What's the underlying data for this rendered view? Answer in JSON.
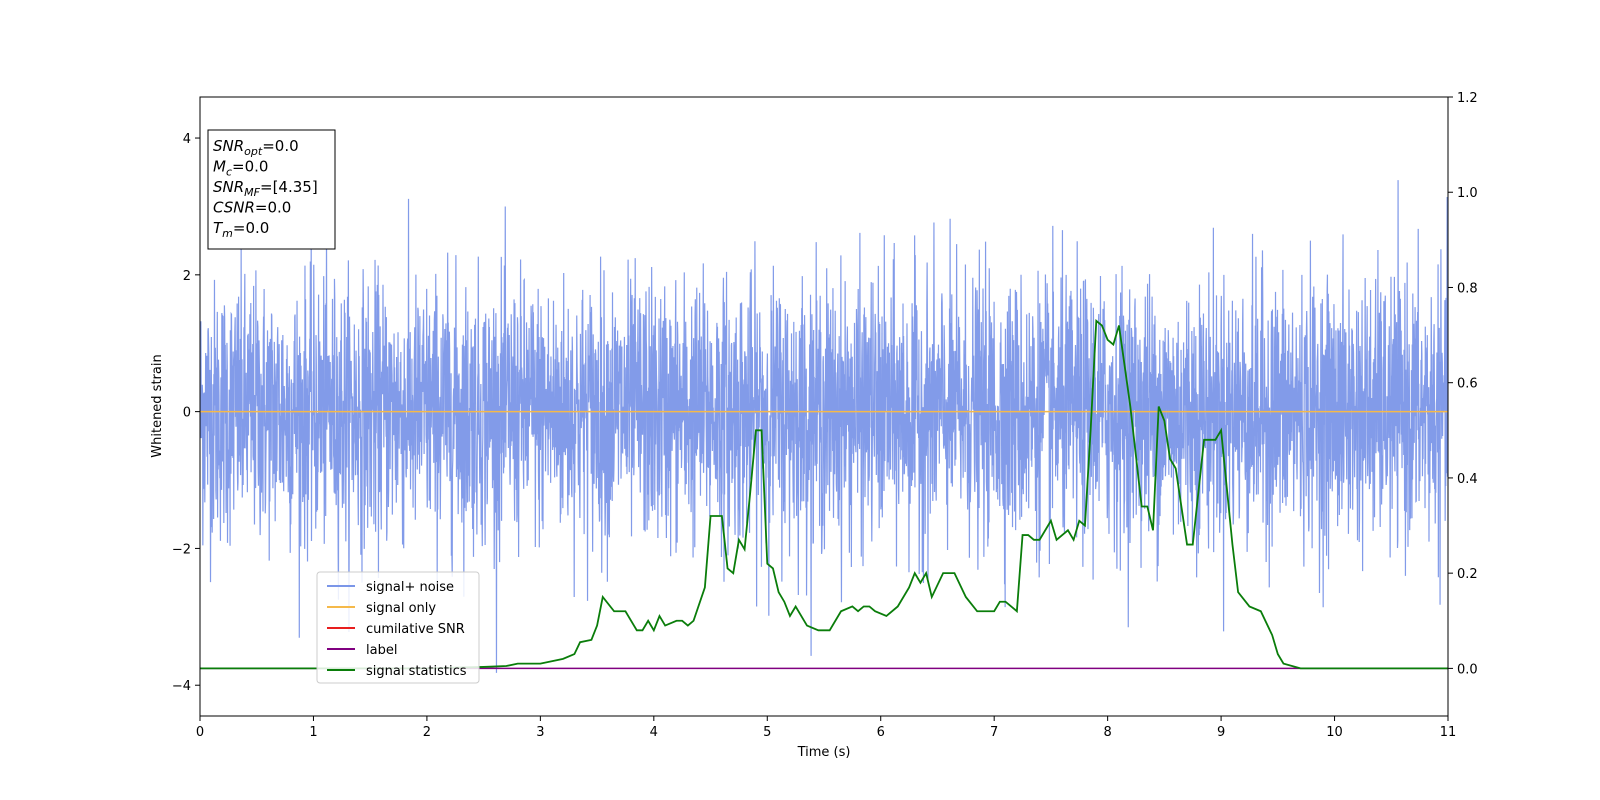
{
  "chart_data": {
    "type": "line",
    "xlabel": "Time (s)",
    "ylabel": "Whitened strain",
    "xlim": [
      0,
      11
    ],
    "ylim_left": [
      -4.45,
      4.6
    ],
    "ylim_right": [
      -0.1,
      1.2
    ],
    "x_ticks": [
      "0",
      "1",
      "2",
      "3",
      "4",
      "5",
      "6",
      "7",
      "8",
      "9",
      "10",
      "11"
    ],
    "y_left_ticks": [
      "−4",
      "−2",
      "0",
      "2",
      "4"
    ],
    "y_right_ticks": [
      "0.0",
      "0.2",
      "0.4",
      "0.6",
      "0.8",
      "1.0",
      "1.2"
    ],
    "grid": false,
    "legend_position": "lower-left",
    "stats_box": [
      {
        "base": "SNR",
        "sub": "opt",
        "value": "=0.0"
      },
      {
        "base": "M",
        "sub": "c",
        "value": "=0.0"
      },
      {
        "base": "SNR",
        "sub": "MF",
        "value": "=[4.35]"
      },
      {
        "base": "CSNR",
        "sub": "",
        "value": "=0.0"
      },
      {
        "base": "T",
        "sub": "m",
        "value": "=0.0"
      }
    ],
    "series": [
      {
        "name": "signal+ noise",
        "color": "#7b96e8",
        "axis": "left",
        "description_values": {
          "noise_amplitude_approx": 1.0,
          "mean": 0.0,
          "duration_s": 11
        }
      },
      {
        "name": "signal only",
        "color": "#f5b94a",
        "axis": "left",
        "x": [
          0,
          11
        ],
        "y": [
          0,
          0
        ]
      },
      {
        "name": "cumilative SNR",
        "color": "#e81e1e",
        "axis": "right",
        "x": [],
        "y": []
      },
      {
        "name": "label",
        "color": "#800080",
        "axis": "right",
        "x": [
          0,
          11
        ],
        "y": [
          0,
          0
        ]
      },
      {
        "name": "signal statistics",
        "color": "#0a7d0a",
        "axis": "right",
        "x": [
          0,
          0.5,
          1,
          1.5,
          2,
          2.5,
          2.7,
          2.8,
          3.0,
          3.1,
          3.2,
          3.3,
          3.35,
          3.45,
          3.5,
          3.55,
          3.65,
          3.75,
          3.85,
          3.9,
          3.95,
          4.0,
          4.05,
          4.1,
          4.2,
          4.25,
          4.3,
          4.35,
          4.45,
          4.5,
          4.55,
          4.6,
          4.65,
          4.7,
          4.75,
          4.8,
          4.85,
          4.9,
          4.95,
          5.0,
          5.05,
          5.1,
          5.15,
          5.2,
          5.25,
          5.35,
          5.45,
          5.55,
          5.65,
          5.75,
          5.8,
          5.85,
          5.9,
          5.95,
          6.05,
          6.15,
          6.25,
          6.3,
          6.35,
          6.4,
          6.45,
          6.55,
          6.65,
          6.75,
          6.85,
          6.95,
          7.0,
          7.05,
          7.1,
          7.2,
          7.25,
          7.3,
          7.35,
          7.4,
          7.5,
          7.55,
          7.65,
          7.7,
          7.75,
          7.8,
          7.85,
          7.9,
          7.95,
          8.0,
          8.05,
          8.1,
          8.2,
          8.3,
          8.35,
          8.4,
          8.45,
          8.5,
          8.55,
          8.6,
          8.7,
          8.75,
          8.85,
          8.95,
          9.0,
          9.05,
          9.1,
          9.15,
          9.25,
          9.35,
          9.45,
          9.5,
          9.55,
          9.7,
          9.85,
          10.0,
          10.2,
          10.5,
          11
        ],
        "y": [
          0.0,
          0.0,
          0.0,
          0.0,
          0.0,
          0.003,
          0.005,
          0.01,
          0.01,
          0.015,
          0.02,
          0.03,
          0.055,
          0.06,
          0.09,
          0.15,
          0.12,
          0.12,
          0.08,
          0.08,
          0.1,
          0.08,
          0.11,
          0.09,
          0.1,
          0.1,
          0.09,
          0.1,
          0.17,
          0.32,
          0.32,
          0.32,
          0.21,
          0.2,
          0.27,
          0.25,
          0.37,
          0.5,
          0.5,
          0.22,
          0.21,
          0.16,
          0.14,
          0.11,
          0.13,
          0.09,
          0.08,
          0.08,
          0.12,
          0.13,
          0.12,
          0.13,
          0.13,
          0.12,
          0.11,
          0.13,
          0.17,
          0.2,
          0.18,
          0.2,
          0.15,
          0.2,
          0.2,
          0.15,
          0.12,
          0.12,
          0.12,
          0.14,
          0.14,
          0.12,
          0.28,
          0.28,
          0.27,
          0.27,
          0.31,
          0.27,
          0.29,
          0.27,
          0.31,
          0.3,
          0.5,
          0.73,
          0.72,
          0.69,
          0.68,
          0.72,
          0.55,
          0.34,
          0.34,
          0.29,
          0.55,
          0.52,
          0.44,
          0.42,
          0.26,
          0.26,
          0.48,
          0.48,
          0.5,
          0.38,
          0.26,
          0.16,
          0.13,
          0.12,
          0.07,
          0.03,
          0.01,
          0.0,
          0.0,
          0.0,
          0.0,
          0.0,
          0.0
        ]
      }
    ]
  }
}
